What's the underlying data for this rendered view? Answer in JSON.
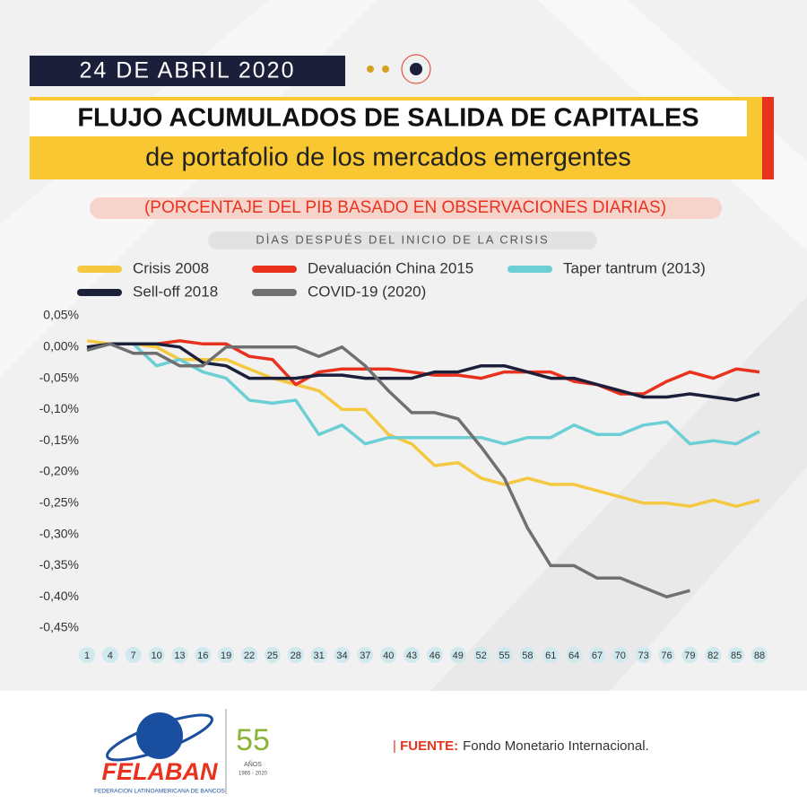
{
  "header": {
    "date": "24 DE ABRIL 2020"
  },
  "chart_data": {
    "type": "line",
    "title": [
      "FLUJO ACUMULADOS DE SALIDA DE CAPITALES",
      "de portafolio de los mercados emergentes"
    ],
    "subtitle": "(PORCENTAJE DEL PIB BASADO EN OBSERVACIONES DIARIAS)",
    "x_label": "DÌAS DESPUÉS DEL INICIO DE LA CRISIS",
    "x": [
      1,
      4,
      7,
      10,
      13,
      16,
      19,
      22,
      25,
      28,
      31,
      34,
      37,
      40,
      43,
      46,
      49,
      52,
      55,
      58,
      61,
      64,
      67,
      70,
      73,
      76,
      79,
      82,
      85,
      88
    ],
    "xlim": [
      1,
      88
    ],
    "xticks": [
      1,
      4,
      7,
      10,
      13,
      16,
      19,
      22,
      25,
      28,
      31,
      34,
      37,
      40,
      43,
      46,
      49,
      52,
      55,
      58,
      61,
      64,
      67,
      70,
      73,
      76,
      79,
      82,
      85,
      88
    ],
    "ylim": [
      -0.45,
      0.05
    ],
    "yticks": [
      {
        "value": 0.05,
        "label": "0,05%"
      },
      {
        "value": 0,
        "label": "0,00%"
      },
      {
        "value": -0.05,
        "label": "-0,05%"
      },
      {
        "value": -0.1,
        "label": "-0,10%"
      },
      {
        "value": -0.15,
        "label": "-0,15%"
      },
      {
        "value": -0.2,
        "label": "-0,20%"
      },
      {
        "value": -0.25,
        "label": "-0,25%"
      },
      {
        "value": -0.3,
        "label": "-0,30%"
      },
      {
        "value": -0.35,
        "label": "-0,35%"
      },
      {
        "value": -0.4,
        "label": "-0,40%"
      },
      {
        "value": -0.45,
        "label": "-0,45%"
      }
    ],
    "series": [
      {
        "name": "Crisis 2008",
        "color": "#f5c842",
        "values": [
          0.01,
          0.005,
          0.005,
          0,
          -0.02,
          -0.02,
          -0.02,
          -0.035,
          -0.05,
          -0.06,
          -0.07,
          -0.1,
          -0.1,
          -0.14,
          -0.155,
          -0.19,
          -0.185,
          -0.21,
          -0.22,
          -0.21,
          -0.22,
          -0.22,
          -0.23,
          -0.24,
          -0.25,
          -0.25,
          -0.255,
          -0.245,
          -0.255,
          -0.245
        ]
      },
      {
        "name": "Devaluación China 2015",
        "color": "#e8321e",
        "values": [
          0,
          0.005,
          0.005,
          0.005,
          0.01,
          0.005,
          0.005,
          -0.015,
          -0.02,
          -0.06,
          -0.04,
          -0.035,
          -0.035,
          -0.035,
          -0.04,
          -0.045,
          -0.045,
          -0.05,
          -0.04,
          -0.04,
          -0.04,
          -0.055,
          -0.06,
          -0.075,
          -0.075,
          -0.055,
          -0.04,
          -0.05,
          -0.035,
          -0.04
        ]
      },
      {
        "name": "Taper tantrum (2013)",
        "color": "#6dcfd6",
        "values": [
          0,
          0.005,
          0.005,
          -0.03,
          -0.02,
          -0.04,
          -0.05,
          -0.085,
          -0.09,
          -0.085,
          -0.14,
          -0.125,
          -0.155,
          -0.145,
          -0.145,
          -0.145,
          -0.145,
          -0.145,
          -0.155,
          -0.145,
          -0.145,
          -0.125,
          -0.14,
          -0.14,
          -0.125,
          -0.12,
          -0.155,
          -0.15,
          -0.155,
          -0.135
        ]
      },
      {
        "name": "Sell-off 2018",
        "color": "#1c1f3a",
        "values": [
          0,
          0.005,
          0.005,
          0.005,
          0,
          -0.025,
          -0.03,
          -0.05,
          -0.05,
          -0.05,
          -0.045,
          -0.045,
          -0.05,
          -0.05,
          -0.05,
          -0.04,
          -0.04,
          -0.03,
          -0.03,
          -0.04,
          -0.05,
          -0.05,
          -0.06,
          -0.07,
          -0.08,
          -0.08,
          -0.075,
          -0.08,
          -0.085,
          -0.075
        ]
      },
      {
        "name": "COVID-19 (2020)",
        "color": "#707070",
        "values": [
          -0.005,
          0.005,
          -0.01,
          -0.01,
          -0.03,
          -0.03,
          0,
          0,
          0,
          0,
          -0.015,
          0,
          -0.03,
          -0.07,
          -0.105,
          -0.105,
          -0.115,
          -0.16,
          -0.21,
          -0.29,
          -0.35,
          -0.35,
          -0.37,
          -0.37,
          -0.385,
          -0.4,
          -0.39,
          null,
          null,
          null
        ]
      }
    ]
  },
  "logo": {
    "name": "FELABAN",
    "full_name": "FEDERACION LATINOAMERICANA DE BANCOS",
    "years": "55",
    "years_word": "AÑOS",
    "period": "1965 - 2020"
  },
  "footer": {
    "source_label": "FUENTE:",
    "source": "Fondo Monetario Internacional."
  }
}
